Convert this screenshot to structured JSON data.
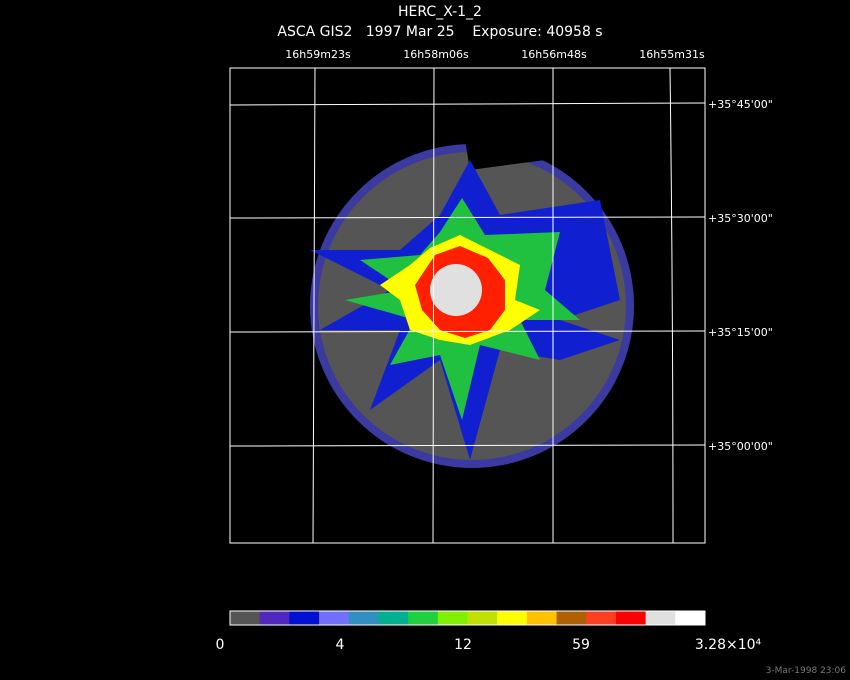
{
  "header": {
    "title": "HERC_X-1_2",
    "subtitle": "ASCA GIS2   1997 Mar 25    Exposure: 40958 s"
  },
  "ra_labels": [
    "16h59m23s",
    "16h58m06s",
    "16h56m48s",
    "16h55m31s"
  ],
  "dec_labels": [
    "+35°45'00\"",
    "+35°30'00\"",
    "+35°15'00\"",
    "+35°00'00\""
  ],
  "colorbar_labels": [
    "0",
    "4",
    "12",
    "59",
    "3.28×10⁴"
  ],
  "footer": "3-Mar-1998 23:06"
}
